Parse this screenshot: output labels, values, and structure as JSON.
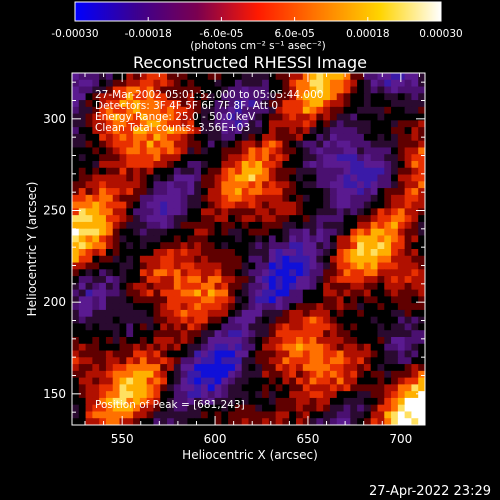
{
  "colorbar": {
    "tick_labels": [
      "-0.00030",
      "-0.00018",
      "-6.0e-05",
      "6.0e-05",
      "0.00018",
      "0.00030"
    ],
    "tick_values": [
      -0.0003,
      -0.00018,
      -6e-05,
      6e-05,
      0.00018,
      0.0003
    ],
    "range": [
      -0.0003,
      0.0003
    ],
    "unit_label": "(photons cm⁻² s⁻¹ asec⁻²)",
    "colors": [
      "#0000ff",
      "#3b0090",
      "#7a0050",
      "#ff1a00",
      "#ff7a00",
      "#ffd400",
      "#ffffff"
    ]
  },
  "chart_data": {
    "type": "heatmap",
    "title": "Reconstructed RHESSI Image",
    "xlabel": "Heliocentric X (arcsec)",
    "ylabel": "Heliocentric Y (arcsec)",
    "xlim": [
      523,
      713
    ],
    "ylim": [
      133,
      325
    ],
    "x_ticks": [
      550,
      600,
      650,
      700
    ],
    "y_ticks": [
      150,
      200,
      250,
      300
    ],
    "annotations": {
      "time": "27-Mar-2002 05:01:32.000 to 05:05:44.000",
      "detectors": "Detectors: 3F 4F 5F 6F 7F 8F, Att 0",
      "energy": "Energy Range: 25.0 - 50.0 keV",
      "method": "Clean     Total counts: 3.56E+03",
      "peak": "Position of Peak = [681,243]"
    }
  },
  "footer": {
    "timestamp": "27-Apr-2022 23:29"
  }
}
